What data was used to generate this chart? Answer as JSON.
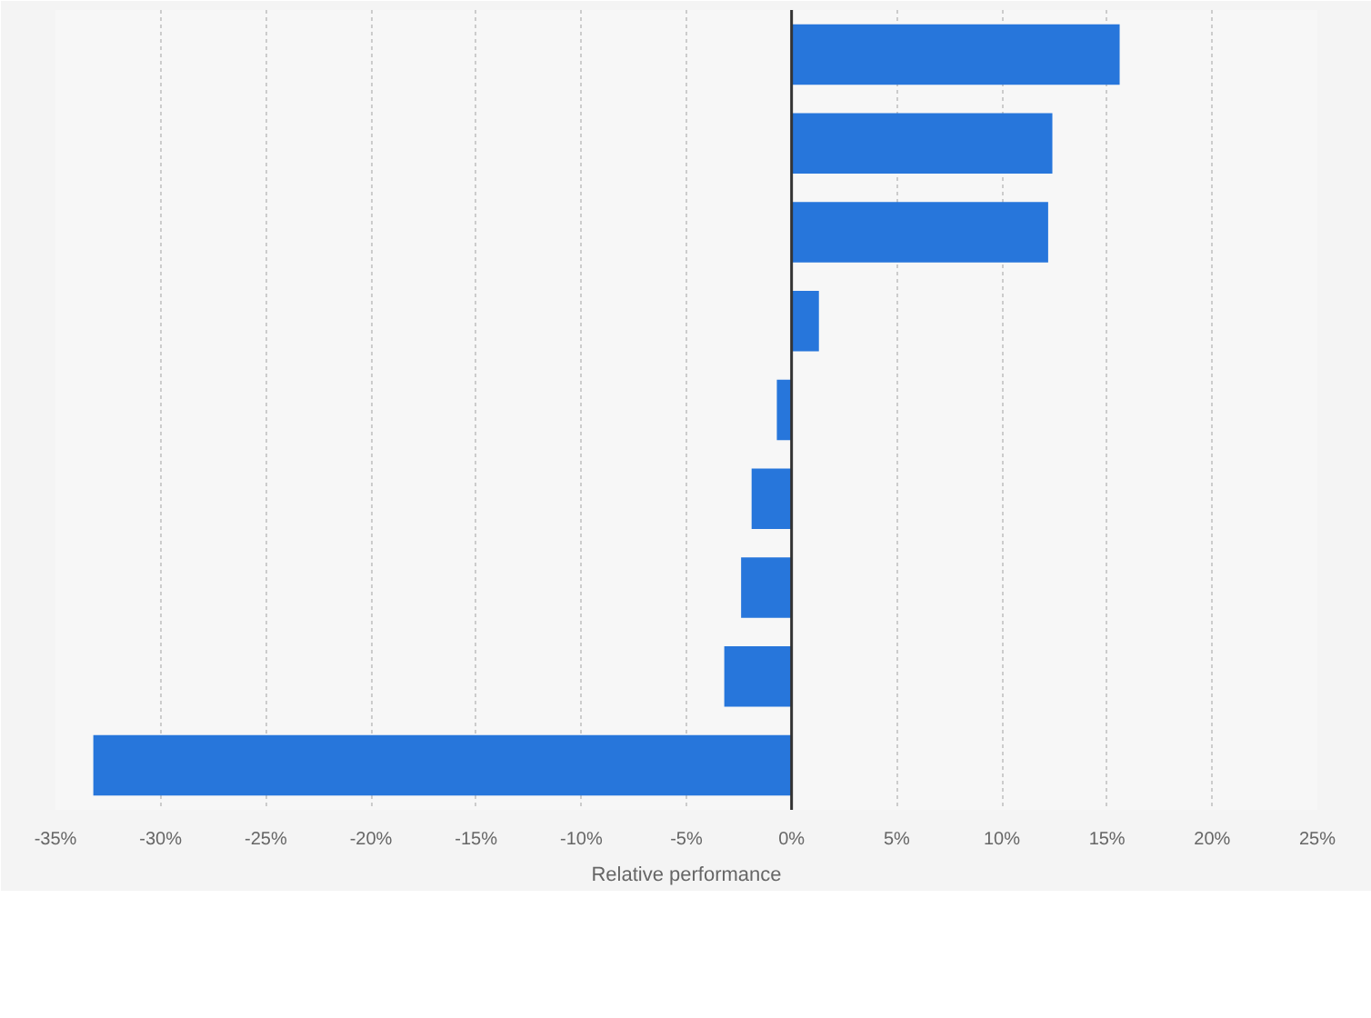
{
  "chart_data": {
    "type": "bar",
    "orientation": "horizontal",
    "xlabel": "Relative performance",
    "categories": [
      null,
      null,
      null,
      null,
      null,
      null,
      null,
      null,
      null
    ],
    "values": [
      15.6,
      12.4,
      12.2,
      1.3,
      -0.7,
      -1.9,
      -2.4,
      -3.2,
      -33.2
    ],
    "color": "#2776db",
    "xlim": [
      -35,
      25
    ],
    "xticks": [
      {
        "value": -35,
        "label": "-35%"
      },
      {
        "value": -30,
        "label": "-30%"
      },
      {
        "value": -25,
        "label": "-25%"
      },
      {
        "value": -20,
        "label": "-20%"
      },
      {
        "value": -15,
        "label": "-15%"
      },
      {
        "value": -10,
        "label": "-10%"
      },
      {
        "value": -5,
        "label": "-5%"
      },
      {
        "value": 0,
        "label": "0%"
      },
      {
        "value": 5,
        "label": "5%"
      },
      {
        "value": 10,
        "label": "10%"
      },
      {
        "value": 15,
        "label": "15%"
      },
      {
        "value": 20,
        "label": "20%"
      },
      {
        "value": 25,
        "label": "25%"
      }
    ],
    "grid": "x"
  }
}
